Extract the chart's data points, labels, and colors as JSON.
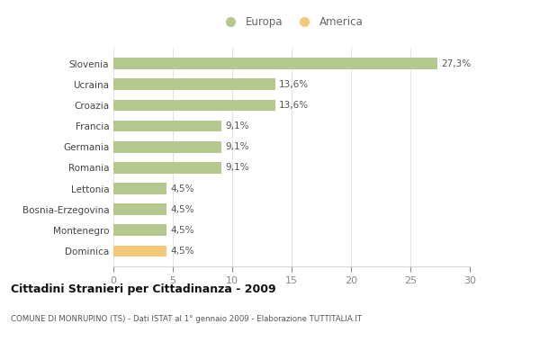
{
  "categories": [
    "Dominica",
    "Montenegro",
    "Bosnia-Erzegovina",
    "Lettonia",
    "Romania",
    "Germania",
    "Francia",
    "Croazia",
    "Ucraina",
    "Slovenia"
  ],
  "values": [
    4.5,
    4.5,
    4.5,
    4.5,
    9.1,
    9.1,
    9.1,
    13.6,
    13.6,
    27.3
  ],
  "labels": [
    "4,5%",
    "4,5%",
    "4,5%",
    "4,5%",
    "9,1%",
    "9,1%",
    "9,1%",
    "13,6%",
    "13,6%",
    "27,3%"
  ],
  "colors": [
    "#f5c97a",
    "#b5c98e",
    "#b5c98e",
    "#b5c98e",
    "#b5c98e",
    "#b5c98e",
    "#b5c98e",
    "#b5c98e",
    "#b5c98e",
    "#b5c98e"
  ],
  "europa_color": "#b5c98e",
  "america_color": "#f5c97a",
  "background_color": "#ffffff",
  "title": "Cittadini Stranieri per Cittadinanza - 2009",
  "subtitle": "COMUNE DI MONRUPINO (TS) - Dati ISTAT al 1° gennaio 2009 - Elaborazione TUTTITALIA.IT",
  "xlim": [
    0,
    30
  ],
  "xticks": [
    0,
    5,
    10,
    15,
    20,
    25,
    30
  ],
  "legend_europa": "Europa",
  "legend_america": "America"
}
